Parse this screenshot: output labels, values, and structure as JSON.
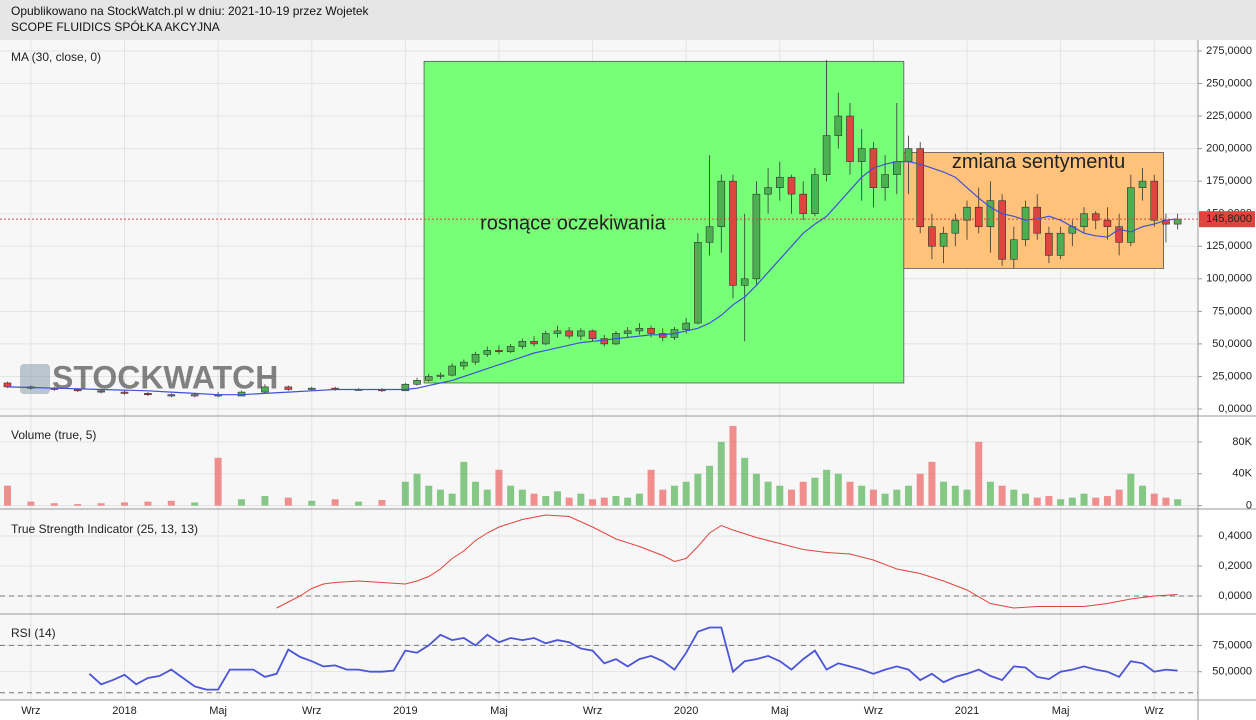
{
  "header": {
    "published": "Opublikowano na StockWatch.pl w dniu: 2021-10-19 przez Wojetek",
    "company": "SCOPE FLUIDICS SPÓŁKA AKCYJNA"
  },
  "x_axis": {
    "xlim": [
      -1.32,
      49.87
    ],
    "xticks": [
      {
        "value": 0,
        "label": "Wrz"
      },
      {
        "value": 4,
        "label": "2018"
      },
      {
        "value": 8,
        "label": "Maj"
      },
      {
        "value": 12,
        "label": "Wrz"
      },
      {
        "value": 16,
        "label": "2019"
      },
      {
        "value": 20,
        "label": "Maj"
      },
      {
        "value": 24,
        "label": "Wrz"
      },
      {
        "value": 28,
        "label": "2020"
      },
      {
        "value": 32,
        "label": "Maj"
      },
      {
        "value": 36,
        "label": "Wrz"
      },
      {
        "value": 40,
        "label": "2021"
      },
      {
        "value": 44,
        "label": "Maj"
      },
      {
        "value": 48,
        "label": "Wrz"
      }
    ],
    "grid": true
  },
  "chart_data": [
    {
      "type": "candlestick",
      "label": "MA (30, close, 0)",
      "watermark": "STOCKWATCH",
      "x": [
        -1,
        0,
        1,
        2,
        3,
        4,
        5,
        6,
        7,
        8,
        9,
        10,
        11,
        12,
        13,
        14,
        15,
        16,
        16.5,
        17,
        17.5,
        18,
        18.5,
        19,
        19.5,
        20,
        20.5,
        21,
        21.5,
        22,
        22.5,
        23,
        23.5,
        24,
        24.5,
        25,
        25.5,
        26,
        26.5,
        27,
        27.5,
        28,
        28.5,
        29,
        29.5,
        30,
        30.5,
        31,
        31.5,
        32,
        32.5,
        33,
        33.5,
        34,
        34.5,
        35,
        35.5,
        36,
        36.5,
        37,
        37.5,
        38,
        38.5,
        39,
        39.5,
        40,
        40.5,
        41,
        41.5,
        42,
        42.5,
        43,
        43.5,
        44,
        44.5,
        45,
        45.5,
        46,
        46.5,
        47,
        47.5,
        48,
        48.5,
        49
      ],
      "open": [
        20,
        17,
        16,
        15,
        14,
        13,
        12,
        11,
        10,
        11,
        10,
        13,
        17,
        15,
        16,
        15,
        15,
        14,
        19,
        22,
        25,
        26,
        33,
        36,
        42,
        45,
        44,
        48,
        52,
        50,
        58,
        60,
        56,
        60,
        54,
        50,
        58,
        60,
        62,
        58,
        55,
        61,
        66,
        128,
        140,
        175,
        95,
        100,
        165,
        170,
        178,
        165,
        150,
        180,
        210,
        225,
        190,
        200,
        170,
        180,
        190,
        200,
        140,
        125,
        135,
        145,
        155,
        140,
        160,
        115,
        130,
        155,
        135,
        118,
        135,
        140,
        150,
        145,
        140,
        128,
        170,
        175,
        145,
        142
      ],
      "high": [
        21,
        18,
        17,
        16,
        15,
        14,
        13,
        12,
        12,
        13,
        14,
        19,
        18,
        17,
        17,
        16,
        16,
        20,
        24,
        27,
        28,
        35,
        38,
        44,
        48,
        49,
        50,
        54,
        56,
        60,
        64,
        63,
        62,
        61,
        57,
        60,
        63,
        66,
        64,
        62,
        63,
        70,
        135,
        195,
        180,
        180,
        150,
        175,
        185,
        190,
        180,
        175,
        185,
        268,
        243,
        235,
        215,
        205,
        195,
        235,
        210,
        205,
        150,
        140,
        150,
        160,
        170,
        175,
        165,
        140,
        160,
        165,
        140,
        140,
        145,
        155,
        152,
        155,
        150,
        180,
        185,
        180,
        150,
        150
      ],
      "low": [
        16,
        15,
        14,
        13,
        12,
        11,
        10,
        9,
        9,
        9,
        10,
        12,
        14,
        14,
        14,
        14,
        13,
        14,
        18,
        21,
        23,
        25,
        30,
        34,
        40,
        42,
        43,
        46,
        48,
        49,
        55,
        54,
        53,
        52,
        48,
        49,
        55,
        57,
        55,
        52,
        53,
        58,
        65,
        118,
        120,
        85,
        52,
        95,
        150,
        160,
        150,
        145,
        148,
        175,
        200,
        180,
        160,
        155,
        160,
        165,
        165,
        135,
        115,
        112,
        125,
        130,
        135,
        120,
        110,
        108,
        125,
        130,
        112,
        115,
        125,
        135,
        138,
        130,
        118,
        125,
        160,
        140,
        128,
        138
      ],
      "close": [
        17,
        16,
        15,
        14,
        13,
        12,
        11,
        10,
        11,
        10,
        13,
        17,
        15,
        16,
        15,
        15,
        14,
        19,
        22,
        25,
        26,
        33,
        36,
        42,
        45,
        44,
        48,
        52,
        50,
        58,
        60,
        56,
        60,
        54,
        50,
        58,
        60,
        62,
        58,
        55,
        61,
        66,
        128,
        140,
        175,
        95,
        100,
        165,
        170,
        178,
        165,
        150,
        180,
        210,
        225,
        190,
        200,
        170,
        180,
        190,
        200,
        140,
        125,
        135,
        145,
        155,
        140,
        160,
        115,
        130,
        155,
        135,
        118,
        135,
        140,
        150,
        145,
        140,
        128,
        170,
        175,
        145,
        142,
        145.8
      ],
      "up_color": "#4caf50",
      "down_color": "#e0443e",
      "ma": {
        "color": "#3f51d8",
        "values": [
          17,
          16.5,
          16,
          15.5,
          15,
          14.5,
          14,
          13,
          12,
          11,
          11,
          12,
          13,
          14,
          15,
          15,
          15,
          15,
          16,
          18,
          20,
          22,
          25,
          28,
          31,
          34,
          37,
          40,
          43,
          45,
          47,
          49,
          51,
          52,
          53,
          54,
          55,
          56,
          57,
          57,
          58,
          60,
          62,
          66,
          72,
          80,
          86,
          95,
          105,
          115,
          125,
          135,
          142,
          148,
          158,
          168,
          178,
          185,
          188,
          190,
          190,
          188,
          185,
          182,
          178,
          170,
          162,
          155,
          150,
          148,
          145,
          146,
          148,
          145,
          140,
          135,
          133,
          132,
          138,
          136,
          140,
          142,
          145,
          146
        ]
      },
      "last_price": {
        "value": 145.8,
        "label": "145,8000",
        "color": "#e0443e"
      },
      "annotations": [
        {
          "text": "rosnące oczekiwania",
          "x": [
            16.8,
            37.3
          ],
          "y": [
            20,
            267
          ],
          "color": "#77ff77"
        },
        {
          "text": "zmiana sentymentu",
          "x": [
            37.3,
            48.4
          ],
          "y": [
            108,
            197
          ],
          "color": "#ffc27a"
        }
      ],
      "ylim": [
        -4.6,
        283.4
      ],
      "yticks": [
        {
          "value": 0,
          "label": "0,0000"
        },
        {
          "value": 25,
          "label": "25,0000"
        },
        {
          "value": 50,
          "label": "50,0000"
        },
        {
          "value": 75,
          "label": "75,0000"
        },
        {
          "value": 100,
          "label": "100,0000"
        },
        {
          "value": 125,
          "label": "125,0000"
        },
        {
          "value": 150,
          "label": "150,0000"
        },
        {
          "value": 175,
          "label": "175,0000"
        },
        {
          "value": 200,
          "label": "200,0000"
        },
        {
          "value": 225,
          "label": "225,0000"
        },
        {
          "value": 250,
          "label": "250,0000"
        },
        {
          "value": 275,
          "label": "275,0000"
        }
      ],
      "grid": true
    },
    {
      "type": "volume",
      "label": "Volume (true, 5)",
      "up_color": "#5fb85f",
      "down_color": "#ee6b6b",
      "values": [
        25000,
        5000,
        3000,
        2000,
        3000,
        4000,
        5000,
        6000,
        4000,
        60000,
        8000,
        12000,
        10000,
        6000,
        8000,
        5000,
        7000,
        30000,
        40000,
        25000,
        20000,
        15000,
        55000,
        30000,
        20000,
        45000,
        25000,
        20000,
        15000,
        12000,
        18000,
        10000,
        15000,
        8000,
        10000,
        12000,
        10000,
        15000,
        45000,
        20000,
        25000,
        30000,
        40000,
        50000,
        80000,
        100000,
        60000,
        40000,
        30000,
        25000,
        20000,
        30000,
        35000,
        45000,
        40000,
        30000,
        25000,
        20000,
        15000,
        20000,
        25000,
        40000,
        55000,
        30000,
        25000,
        20000,
        80000,
        30000,
        25000,
        20000,
        15000,
        10000,
        12000,
        8000,
        10000,
        15000,
        10000,
        12000,
        20000,
        40000,
        25000,
        15000,
        10000,
        8000
      ],
      "ylim": [
        -3000,
        110000
      ],
      "yticks": [
        0,
        {
          "value": 40000,
          "label": "40K"
        },
        {
          "value": 80000,
          "label": "80K"
        }
      ],
      "grid": true
    },
    {
      "type": "line",
      "label": "True Strength Indicator (25, 13, 13)",
      "color": "#e0443e",
      "x": [
        10.5,
        11,
        11.5,
        12,
        12.5,
        13,
        14,
        15,
        16,
        16.5,
        17,
        17.5,
        18,
        18.5,
        19,
        19.5,
        20,
        21,
        22,
        23,
        24,
        25,
        26,
        27,
        27.5,
        28,
        28.5,
        29,
        29.5,
        30,
        31,
        32,
        33,
        34,
        35,
        36,
        37,
        38,
        39,
        40,
        41,
        42,
        43,
        44,
        45,
        46,
        47,
        48,
        49
      ],
      "values": [
        -0.08,
        -0.04,
        0.0,
        0.05,
        0.08,
        0.09,
        0.1,
        0.09,
        0.08,
        0.1,
        0.13,
        0.18,
        0.25,
        0.3,
        0.37,
        0.42,
        0.46,
        0.51,
        0.54,
        0.53,
        0.46,
        0.38,
        0.33,
        0.27,
        0.23,
        0.25,
        0.33,
        0.42,
        0.47,
        0.44,
        0.39,
        0.35,
        0.31,
        0.29,
        0.28,
        0.24,
        0.18,
        0.15,
        0.1,
        0.04,
        -0.05,
        -0.08,
        -0.07,
        -0.07,
        -0.07,
        -0.05,
        -0.02,
        0.0,
        0.01
      ],
      "reference_lines": [
        0
      ],
      "ylim": [
        -0.107,
        0.56
      ],
      "yticks": [
        {
          "value": 0,
          "label": "0,0000"
        },
        {
          "value": 0.2,
          "label": "0,2000"
        },
        {
          "value": 0.4,
          "label": "0,4000"
        }
      ],
      "grid": true
    },
    {
      "type": "line",
      "label": "RSI (14)",
      "color": "#4a55d8",
      "x": [
        2.5,
        3,
        3.5,
        4,
        4.5,
        5,
        5.5,
        6,
        6.5,
        7,
        7.5,
        8,
        8.5,
        9,
        9.5,
        10,
        10.5,
        11,
        11.5,
        12,
        12.5,
        13,
        13.5,
        14,
        14.5,
        15,
        15.5,
        16,
        16.5,
        17,
        17.5,
        18,
        18.5,
        19,
        19.5,
        20,
        20.5,
        21,
        21.5,
        22,
        22.5,
        23,
        23.5,
        24,
        24.5,
        25,
        25.5,
        26,
        26.5,
        27,
        27.5,
        28,
        28.5,
        29,
        29.5,
        30,
        30.5,
        31,
        31.5,
        32,
        32.5,
        33,
        33.5,
        34,
        34.5,
        35,
        35.5,
        36,
        36.5,
        37,
        37.5,
        38,
        38.5,
        39,
        39.5,
        40,
        40.5,
        41,
        41.5,
        42,
        42.5,
        43,
        43.5,
        44,
        44.5,
        45,
        45.5,
        46,
        46.5,
        47,
        47.5,
        48,
        48.5,
        49
      ],
      "values": [
        48,
        38,
        42,
        47,
        38,
        44,
        46,
        52,
        44,
        36,
        33,
        33,
        52,
        52,
        52,
        45,
        48,
        71,
        64,
        60,
        55,
        56,
        52,
        52,
        50,
        50,
        51,
        70,
        68,
        75,
        85,
        80,
        82,
        75,
        85,
        78,
        82,
        80,
        82,
        77,
        80,
        78,
        72,
        70,
        58,
        62,
        55,
        62,
        65,
        60,
        52,
        68,
        88,
        92,
        92,
        50,
        60,
        62,
        65,
        60,
        52,
        62,
        70,
        52,
        58,
        55,
        52,
        48,
        52,
        55,
        52,
        42,
        48,
        40,
        45,
        48,
        52,
        46,
        42,
        55,
        54,
        45,
        43,
        50,
        52,
        55,
        52,
        50,
        45,
        60,
        58,
        50,
        52,
        51
      ],
      "reference_lines": [
        30,
        75
      ],
      "ylim": [
        23.1,
        102.9
      ],
      "yticks": [
        {
          "value": 50,
          "label": "50,0000"
        },
        {
          "value": 75,
          "label": "75,0000"
        }
      ],
      "grid": true
    }
  ]
}
